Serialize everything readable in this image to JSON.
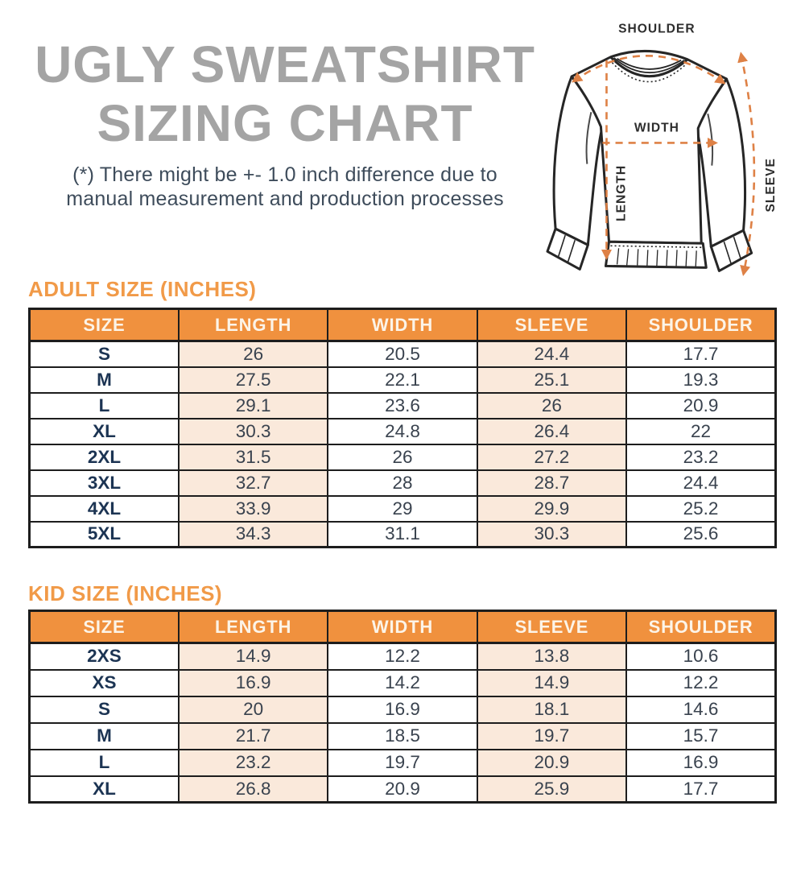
{
  "page": {
    "title_line1": "UGLY SWEATSHIRT",
    "title_line2": "SIZING CHART",
    "disclaimer_line1": "(*) There might be +- 1.0 inch difference due to",
    "disclaimer_line2": "manual measurement and production processes"
  },
  "diagram": {
    "shoulder_label": "SHOULDER",
    "width_label": "WIDTH",
    "length_label": "LENGTH",
    "sleeve_label": "SLEEVE"
  },
  "adult": {
    "heading": "ADULT SIZE (INCHES)",
    "columns": [
      "SIZE",
      "LENGTH",
      "WIDTH",
      "SLEEVE",
      "SHOULDER"
    ],
    "rows": [
      [
        "S",
        "26",
        "20.5",
        "24.4",
        "17.7"
      ],
      [
        "M",
        "27.5",
        "22.1",
        "25.1",
        "19.3"
      ],
      [
        "L",
        "29.1",
        "23.6",
        "26",
        "20.9"
      ],
      [
        "XL",
        "30.3",
        "24.8",
        "26.4",
        "22"
      ],
      [
        "2XL",
        "31.5",
        "26",
        "27.2",
        "23.2"
      ],
      [
        "3XL",
        "32.7",
        "28",
        "28.7",
        "24.4"
      ],
      [
        "4XL",
        "33.9",
        "29",
        "29.9",
        "25.2"
      ],
      [
        "5XL",
        "34.3",
        "31.1",
        "30.3",
        "25.6"
      ]
    ]
  },
  "kid": {
    "heading": "KID SIZE (INCHES)",
    "columns": [
      "SIZE",
      "LENGTH",
      "WIDTH",
      "SLEEVE",
      "SHOULDER"
    ],
    "rows": [
      [
        "2XS",
        "14.9",
        "12.2",
        "13.8",
        "10.6"
      ],
      [
        "XS",
        "16.9",
        "14.2",
        "14.9",
        "12.2"
      ],
      [
        "S",
        "20",
        "16.9",
        "18.1",
        "14.6"
      ],
      [
        "M",
        "21.7",
        "18.5",
        "19.7",
        "15.7"
      ],
      [
        "L",
        "23.2",
        "19.7",
        "20.9",
        "16.9"
      ],
      [
        "XL",
        "26.8",
        "20.9",
        "25.9",
        "17.7"
      ]
    ]
  },
  "colors": {
    "accent_orange": "#F0913E",
    "heading_orange": "#F19A48",
    "peach_cell": "#FAE9DB",
    "navy_text": "#1C3453",
    "value_text": "#39424E",
    "title_gray": "#A4A4A4",
    "dash_orange": "#DE8146"
  }
}
